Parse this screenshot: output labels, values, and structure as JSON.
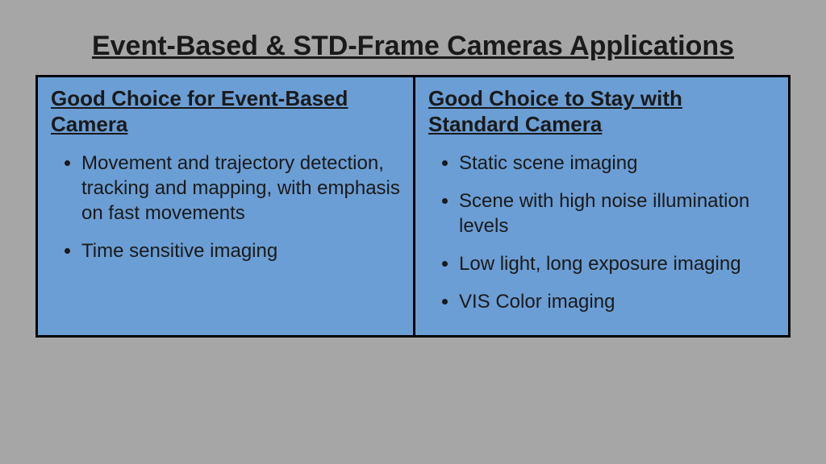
{
  "slide": {
    "background_color": "#a6a6a6",
    "title": "Event-Based & STD-Frame Cameras Applications",
    "title_fontsize": 34,
    "title_fontweight": 700,
    "title_underline": true,
    "title_color": "#1a1a1a",
    "font_family": "Liberation Sans, Arial, Helvetica, sans-serif"
  },
  "table": {
    "fill_color": "#6b9ed4",
    "border_color": "#000000",
    "border_width": 3,
    "columns": [
      {
        "heading": "Good Choice for Event-Based Camera",
        "heading_fontsize": 26,
        "heading_fontweight": 700,
        "heading_underline": true,
        "bullet_fontsize": 24,
        "items": [
          "Movement and trajectory detection, tracking and mapping, with emphasis on fast movements",
          "Time sensitive imaging"
        ]
      },
      {
        "heading": "Good Choice to Stay with Standard Camera",
        "heading_fontsize": 26,
        "heading_fontweight": 700,
        "heading_underline": true,
        "bullet_fontsize": 24,
        "items": [
          "Static scene imaging",
          "Scene with high noise illumination levels",
          "Low light, long exposure imaging",
          "VIS Color imaging"
        ]
      }
    ]
  }
}
